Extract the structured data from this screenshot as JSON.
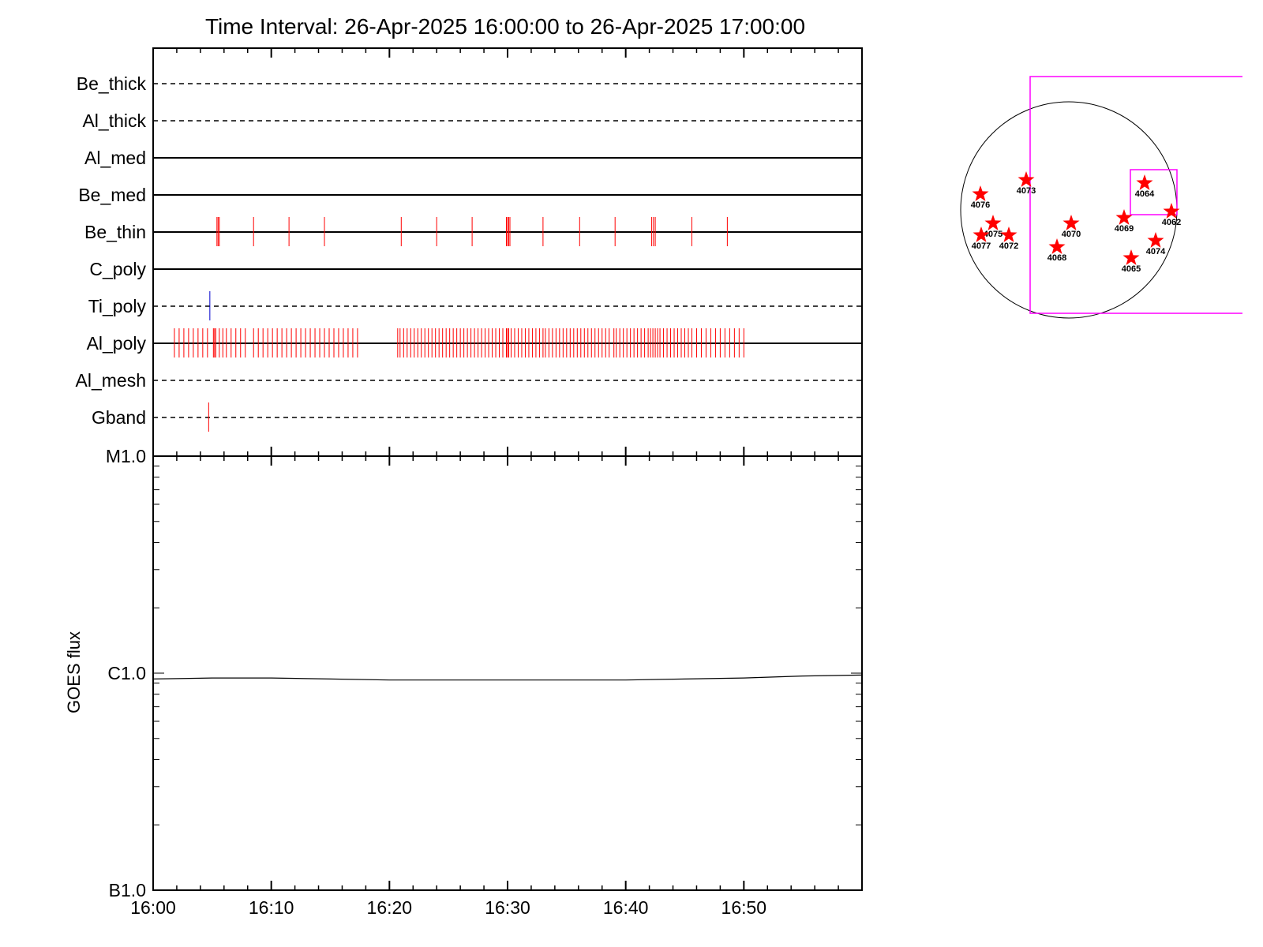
{
  "title": "Time Interval: 26-Apr-2025 16:00:00 to 26-Apr-2025 17:00:00",
  "chart_data": [
    {
      "type": "event-raster",
      "x_range_minutes": [
        0,
        60
      ],
      "x_tick_labels": [
        "16:00",
        "16:10",
        "16:20",
        "16:30",
        "16:40",
        "16:50"
      ],
      "filters": [
        {
          "name": "Be_thick",
          "line": "dashed",
          "events": []
        },
        {
          "name": "Al_thick",
          "line": "dashed",
          "events": []
        },
        {
          "name": "Al_med",
          "line": "solid",
          "events": []
        },
        {
          "name": "Be_med",
          "line": "solid",
          "events": []
        },
        {
          "name": "Be_thin",
          "line": "solid",
          "event_color": "#ff0000",
          "events": [
            5.4,
            5.5,
            5.6,
            8.5,
            11.5,
            14.5,
            21.0,
            24.0,
            27.0,
            29.9,
            30.0,
            30.1,
            30.2,
            33.0,
            36.1,
            39.1,
            42.2,
            42.35,
            42.5,
            45.6,
            48.6
          ]
        },
        {
          "name": "C_poly",
          "line": "solid",
          "events": []
        },
        {
          "name": "Ti_poly",
          "line": "dashed",
          "event_color": "#0000cc",
          "events": [
            4.8
          ]
        },
        {
          "name": "Al_poly",
          "line": "solid",
          "event_color": "#ff0000",
          "events": [
            1.8,
            2.2,
            2.6,
            3.0,
            3.4,
            3.8,
            4.2,
            4.6,
            5.1,
            5.2,
            5.3,
            5.6,
            5.9,
            6.2,
            6.6,
            7.0,
            7.4,
            7.8,
            8.5,
            8.9,
            9.3,
            9.7,
            10.1,
            10.5,
            10.9,
            11.3,
            11.7,
            12.1,
            12.5,
            12.9,
            13.3,
            13.7,
            14.1,
            14.5,
            14.9,
            15.3,
            15.7,
            16.1,
            16.5,
            16.9,
            17.3,
            20.7,
            20.9,
            21.2,
            21.5,
            21.8,
            22.1,
            22.4,
            22.7,
            23.0,
            23.3,
            23.6,
            23.9,
            24.2,
            24.5,
            24.8,
            25.1,
            25.4,
            25.7,
            26.0,
            26.3,
            26.6,
            26.9,
            27.2,
            27.5,
            27.8,
            28.1,
            28.4,
            28.7,
            29.0,
            29.3,
            29.6,
            29.9,
            30.0,
            30.1,
            30.3,
            30.6,
            30.9,
            31.2,
            31.5,
            31.8,
            32.1,
            32.4,
            32.7,
            33.0,
            33.2,
            33.5,
            33.8,
            34.1,
            34.4,
            34.7,
            35.0,
            35.3,
            35.6,
            35.9,
            36.2,
            36.5,
            36.8,
            37.1,
            37.4,
            37.7,
            38.0,
            38.3,
            38.6,
            39.0,
            39.2,
            39.5,
            39.8,
            40.1,
            40.4,
            40.7,
            41.0,
            41.3,
            41.6,
            41.9,
            42.1,
            42.3,
            42.5,
            42.7,
            42.9,
            43.2,
            43.5,
            43.8,
            44.1,
            44.4,
            44.7,
            45.0,
            45.3,
            45.6,
            46.0,
            46.4,
            46.8,
            47.2,
            47.6,
            48.0,
            48.4,
            48.8,
            49.2,
            49.6,
            50.0
          ]
        },
        {
          "name": "Al_mesh",
          "line": "dashed",
          "events": []
        },
        {
          "name": "Gband",
          "line": "dashed",
          "event_color": "#ff0000",
          "events": [
            4.7
          ]
        }
      ]
    },
    {
      "type": "line",
      "ylabel": "GOES flux",
      "y_scale": "log",
      "y_range": [
        1e-07,
        1e-05
      ],
      "y_tick_labels": [
        {
          "label": "M1.0",
          "value": 1e-05
        },
        {
          "label": "C1.0",
          "value": 1e-06
        },
        {
          "label": "B1.0",
          "value": 1e-07
        }
      ],
      "x_range_minutes": [
        0,
        60
      ],
      "x_tick_labels": [
        "16:00",
        "16:10",
        "16:20",
        "16:30",
        "16:40",
        "16:50"
      ],
      "series": [
        {
          "x": [
            0,
            5,
            10,
            15,
            20,
            25,
            30,
            35,
            40,
            45,
            50,
            55,
            60
          ],
          "y": [
            9.4e-07,
            9.5e-07,
            9.5e-07,
            9.4e-07,
            9.3e-07,
            9.3e-07,
            9.3e-07,
            9.3e-07,
            9.3e-07,
            9.4e-07,
            9.5e-07,
            9.7e-07,
            9.8e-07
          ]
        }
      ]
    }
  ],
  "sun_map": {
    "disk_color": "#000000",
    "fov_color": "#ff00ff",
    "marker_color": "#ff0000",
    "regions": [
      "4076",
      "4073",
      "4075",
      "4077",
      "4072",
      "4070",
      "4068",
      "4069",
      "4064",
      "4062",
      "4074",
      "4065"
    ]
  }
}
